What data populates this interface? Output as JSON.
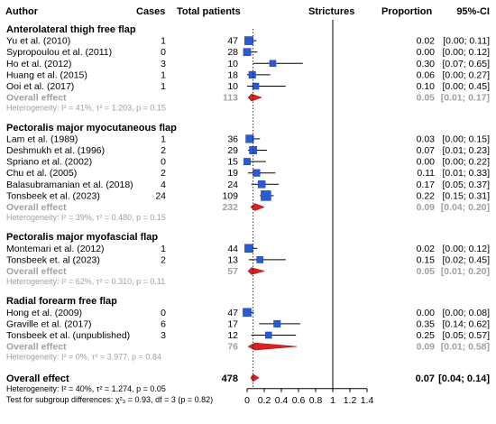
{
  "chart_data": {
    "type": "forest",
    "columns": {
      "author": "Author",
      "cases": "Cases",
      "total": "Total patients",
      "axis_title": "Strictures",
      "proportion": "Proportion",
      "ci": "95%-CI"
    },
    "xlim": [
      0,
      1.4
    ],
    "ticks": [
      "0",
      "0.2",
      "0.4",
      "0.6",
      "0.8",
      "1",
      "1.2",
      "1.4"
    ],
    "tick_values": [
      0,
      0.2,
      0.4,
      0.6,
      0.8,
      1,
      1.2,
      1.4
    ],
    "reference_line": 0.07,
    "colors": {
      "box": "#2a5bd7",
      "diamond": "#e02020",
      "subgroup_text": "#a0a0a0",
      "text": "#000000",
      "line": "#000000"
    },
    "groups": [
      {
        "title": "Anterolateral thigh free flap",
        "studies": [
          {
            "author": "Yu et al. (2010)",
            "cases": "1",
            "total": "47",
            "proportion": "0.02",
            "ci": "[0.00; 0.11]",
            "p": 0.02,
            "lo": 0.0,
            "hi": 0.11
          },
          {
            "author": "Sypropoulou et al. (2011)",
            "cases": "0",
            "total": "28",
            "proportion": "0.00",
            "ci": "[0.00; 0.12]",
            "p": 0.0,
            "lo": 0.0,
            "hi": 0.12
          },
          {
            "author": "Ho et al. (2012)",
            "cases": "3",
            "total": "10",
            "proportion": "0.30",
            "ci": "[0.07; 0.65]",
            "p": 0.3,
            "lo": 0.07,
            "hi": 0.65
          },
          {
            "author": "Huang et al. (2015)",
            "cases": "1",
            "total": "18",
            "proportion": "0.06",
            "ci": "[0.00; 0.27]",
            "p": 0.06,
            "lo": 0.0,
            "hi": 0.27
          },
          {
            "author": "Ooi et al. (2017)",
            "cases": "1",
            "total": "10",
            "proportion": "0.10",
            "ci": "[0.00; 0.45]",
            "p": 0.1,
            "lo": 0.0,
            "hi": 0.45
          }
        ],
        "overall": {
          "label": "Overall effect",
          "total": "113",
          "proportion": "0.05",
          "ci": "[0.01; 0.17]",
          "p": 0.05,
          "lo": 0.01,
          "hi": 0.17
        },
        "heterogeneity": "Heterogeneity: I² = 41%, τ² = 1.203, p = 0.15"
      },
      {
        "title": "Pectoralis major myocutaneous flap",
        "studies": [
          {
            "author": "Lam et al. (1989)",
            "cases": "1",
            "total": "36",
            "proportion": "0.03",
            "ci": "[0.00; 0.15]",
            "p": 0.03,
            "lo": 0.0,
            "hi": 0.15
          },
          {
            "author": "Deshmukh et al. (1996)",
            "cases": "2",
            "total": "29",
            "proportion": "0.07",
            "ci": "[0.01; 0.23]",
            "p": 0.07,
            "lo": 0.01,
            "hi": 0.23
          },
          {
            "author": "Spriano et al. (2002)",
            "cases": "0",
            "total": "15",
            "proportion": "0.00",
            "ci": "[0.00; 0.22]",
            "p": 0.0,
            "lo": 0.0,
            "hi": 0.22
          },
          {
            "author": "Chu et al. (2005)",
            "cases": "2",
            "total": "19",
            "proportion": "0.11",
            "ci": "[0.01; 0.33]",
            "p": 0.11,
            "lo": 0.01,
            "hi": 0.33
          },
          {
            "author": "Balasubramanian et al. (2018)",
            "cases": "4",
            "total": "24",
            "proportion": "0.17",
            "ci": "[0.05; 0.37]",
            "p": 0.17,
            "lo": 0.05,
            "hi": 0.37
          },
          {
            "author": "Tonsbeek et al. (2023)",
            "cases": "24",
            "total": "109",
            "proportion": "0.22",
            "ci": "[0.15; 0.31]",
            "p": 0.22,
            "lo": 0.15,
            "hi": 0.31
          }
        ],
        "overall": {
          "label": "Overall effect",
          "total": "232",
          "proportion": "0.09",
          "ci": "[0.04; 0.20]",
          "p": 0.09,
          "lo": 0.04,
          "hi": 0.2
        },
        "heterogeneity": "Heterogeneity: I² = 39%, τ² = 0.480, p = 0.15"
      },
      {
        "title": "Pectoralis major myofascial flap",
        "studies": [
          {
            "author": "Montemari et al. (2012)",
            "cases": "1",
            "total": "44",
            "proportion": "0.02",
            "ci": "[0.00; 0.12]",
            "p": 0.02,
            "lo": 0.0,
            "hi": 0.12
          },
          {
            "author": "Tonsbeek et. al (2023)",
            "cases": "2",
            "total": "13",
            "proportion": "0.15",
            "ci": "[0.02; 0.45]",
            "p": 0.15,
            "lo": 0.02,
            "hi": 0.45
          }
        ],
        "overall": {
          "label": "Overall effect",
          "total": "57",
          "proportion": "0.05",
          "ci": "[0.01; 0.20]",
          "p": 0.05,
          "lo": 0.01,
          "hi": 0.2
        },
        "heterogeneity": "Heterogeneity: I² = 62%, τ² = 0.310, p = 0.11"
      },
      {
        "title": "Radial forearm free flap",
        "studies": [
          {
            "author": "Hong et al. (2009)",
            "cases": "0",
            "total": "47",
            "proportion": "0.00",
            "ci": "[0.00; 0.08]",
            "p": 0.0,
            "lo": 0.0,
            "hi": 0.08
          },
          {
            "author": "Graville et al. (2017)",
            "cases": "6",
            "total": "17",
            "proportion": "0.35",
            "ci": "[0.14; 0.62]",
            "p": 0.35,
            "lo": 0.14,
            "hi": 0.62
          },
          {
            "author": "Tonsbeek et al. (unpublished)",
            "cases": "3",
            "total": "12",
            "proportion": "0.25",
            "ci": "[0.05; 0.57]",
            "p": 0.25,
            "lo": 0.05,
            "hi": 0.57
          }
        ],
        "overall": {
          "label": "Overall effect",
          "total": "76",
          "proportion": "0.09",
          "ci": "[0.01; 0.58]",
          "p": 0.09,
          "lo": 0.01,
          "hi": 0.58
        },
        "heterogeneity": "Heterogeneity: I² = 0%, τ² = 3.977, p = 0.84"
      }
    ],
    "overall": {
      "label": "Overall effect",
      "total": "478",
      "proportion": "0.07",
      "ci": "[0.04; 0.14]",
      "p": 0.07,
      "lo": 0.04,
      "hi": 0.14
    },
    "footer_heterogeneity": "Heterogeneity: I² = 40%, τ² = 1.274, p = 0.05",
    "footer_subgroup_test": "Test for subgroup differences: χ²₃ = 0.93, df = 3 (p = 0.82)"
  }
}
